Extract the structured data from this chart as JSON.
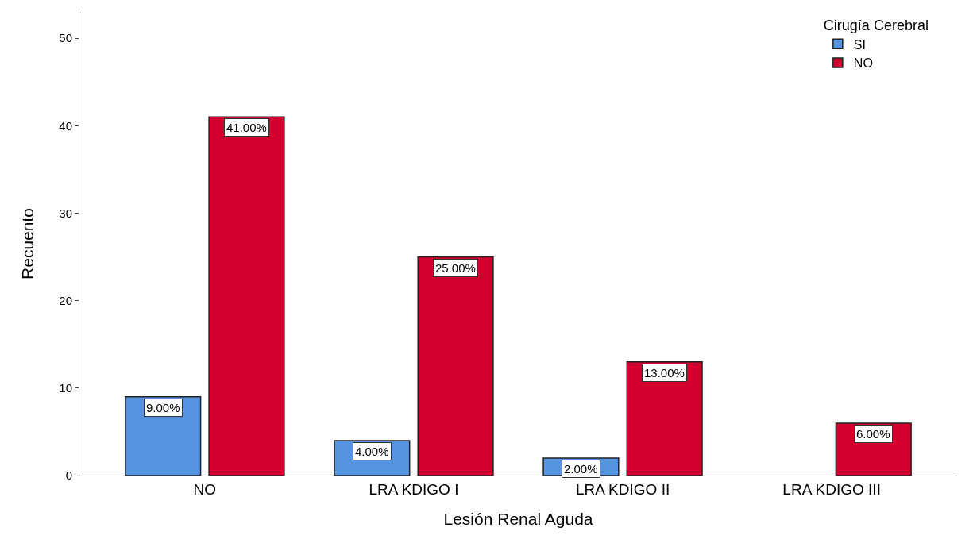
{
  "chart_data": {
    "type": "bar",
    "xlabel": "Lesión Renal Aguda",
    "ylabel": "Recuento",
    "legend_title": "Cirugía Cerebral",
    "categories": [
      "NO",
      "LRA KDIGO I",
      "LRA KDIGO II",
      "LRA KDIGO III"
    ],
    "series": [
      {
        "name": "SI",
        "color": "#5592e0",
        "values": [
          9,
          4,
          2,
          null
        ],
        "value_labels": [
          "9.00%",
          "4.00%",
          "2.00%",
          null
        ]
      },
      {
        "name": "NO",
        "color": "#d2002e",
        "values": [
          41,
          25,
          13,
          6
        ],
        "value_labels": [
          "41.00%",
          "25.00%",
          "13.00%",
          "6.00%"
        ]
      }
    ],
    "ylim": [
      0,
      53
    ],
    "yticks": [
      0,
      10,
      20,
      30,
      40,
      50
    ],
    "grid": false,
    "legend": "top right"
  }
}
